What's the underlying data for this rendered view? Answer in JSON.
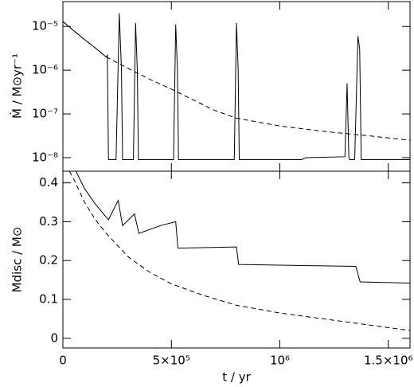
{
  "chart_data": [
    {
      "type": "line",
      "ylabel": "Ṁ / M⊙yr⁻¹",
      "yscale": "log",
      "xlim": [
        0,
        1600000
      ],
      "ylim": [
        4.9e-09,
        3.7e-05
      ],
      "yticks": [
        {
          "value": 1e-08,
          "label": "10⁻⁸"
        },
        {
          "value": 1e-07,
          "label": "10⁻⁷"
        },
        {
          "value": 1e-06,
          "label": "10⁻⁶"
        },
        {
          "value": 1e-05,
          "label": "10⁻⁵"
        }
      ],
      "series": [
        {
          "color": "#000000",
          "dash": false,
          "x": [
            0,
            50000,
            100000,
            150000,
            200000,
            205000,
            210000,
            245000,
            260000,
            270000,
            275000,
            325000,
            335000,
            343000,
            348000,
            510000,
            520000,
            528000,
            533000,
            790000,
            800000,
            808000,
            813000,
            1100000,
            1120000,
            1300000,
            1310000,
            1318000,
            1322000,
            1345000,
            1360000,
            1368000,
            1375000,
            1600000
          ],
          "values": [
            1.3e-05,
            8e-06,
            5e-06,
            3.2e-06,
            2e-06,
            2.2e-06,
            9e-09,
            9e-09,
            2e-05,
            1e-06,
            9e-09,
            9e-09,
            1.2e-05,
            1e-06,
            9e-09,
            9e-09,
            1.1e-05,
            1e-06,
            9e-09,
            9e-09,
            1.2e-05,
            1e-06,
            9e-09,
            9e-09,
            1e-08,
            1.05e-08,
            5e-07,
            1.05e-08,
            9e-09,
            9e-09,
            6e-06,
            3e-06,
            9e-09,
            9e-09
          ]
        },
        {
          "color": "#000000",
          "dash": true,
          "x": [
            0,
            50000,
            100000,
            150000,
            200000,
            300000,
            400000,
            500000,
            600000,
            700000,
            800000,
            900000,
            1000000,
            1200000,
            1400000,
            1600000
          ],
          "values": [
            1.3e-05,
            8e-06,
            5e-06,
            3.2e-06,
            2e-06,
            1.1e-06,
            6.2e-07,
            3.7e-07,
            2.1e-07,
            1.2e-07,
            8e-08,
            6.5e-08,
            5.3e-08,
            4e-08,
            3.2e-08,
            2.5e-08
          ]
        }
      ]
    },
    {
      "type": "line",
      "ylabel": "Mdisc / M⊙",
      "xlabel": "t / yr",
      "yscale": "linear",
      "xlim": [
        0,
        1600000
      ],
      "ylim": [
        -0.025,
        0.43
      ],
      "xticks": [
        0,
        {
          "value": 500000,
          "label": "5×10⁵"
        },
        {
          "value": 1000000,
          "label": "10⁶"
        },
        {
          "value": 1500000,
          "label": "1.5×10⁶"
        }
      ],
      "yticks": [
        0,
        0.1,
        0.2,
        0.3,
        0.4
      ],
      "series": [
        {
          "color": "#000000",
          "dash": false,
          "x": [
            60000,
            100000,
            150000,
            210000,
            255000,
            275000,
            330000,
            350000,
            450000,
            520000,
            530000,
            800000,
            810000,
            1350000,
            1370000,
            1600000
          ],
          "values": [
            0.43,
            0.385,
            0.345,
            0.305,
            0.355,
            0.29,
            0.32,
            0.27,
            0.29,
            0.3,
            0.232,
            0.235,
            0.19,
            0.185,
            0.145,
            0.142
          ]
        },
        {
          "color": "#000000",
          "dash": true,
          "x": [
            30000,
            50000,
            100000,
            150000,
            200000,
            300000,
            400000,
            500000,
            650000,
            800000,
            1000000,
            1200000,
            1400000,
            1600000
          ],
          "values": [
            0.43,
            0.41,
            0.35,
            0.305,
            0.27,
            0.21,
            0.17,
            0.14,
            0.11,
            0.085,
            0.065,
            0.05,
            0.035,
            0.02
          ]
        }
      ]
    }
  ]
}
